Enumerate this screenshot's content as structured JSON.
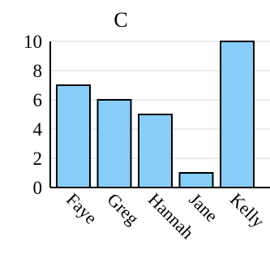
{
  "chart_data": {
    "type": "bar",
    "title": "C",
    "xlabel": "",
    "ylabel": "",
    "categories": [
      "Faye",
      "Greg",
      "Hannah",
      "Jane",
      "Kelly"
    ],
    "values": [
      7,
      6,
      5,
      1,
      10
    ],
    "ylim": [
      0,
      10
    ],
    "yticks": [
      "0",
      "2",
      "4",
      "6",
      "8",
      "10"
    ],
    "grid": "horizontal",
    "bar_color": "#87cefa",
    "bar_edge_color": "#000000"
  }
}
